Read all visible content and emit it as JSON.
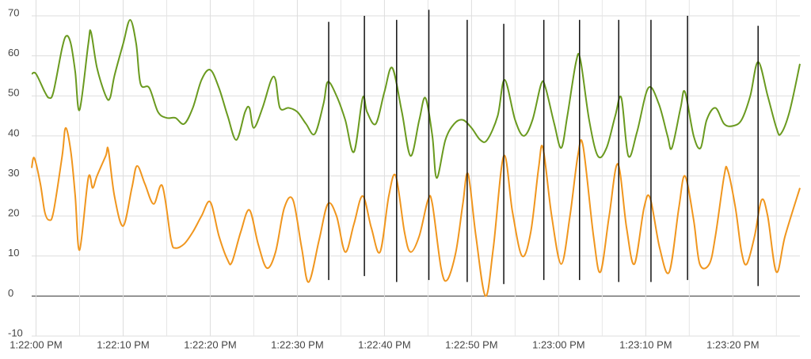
{
  "chart_data": {
    "type": "line",
    "xlim": [
      -0.5,
      87.7
    ],
    "ylim": [
      -10,
      70
    ],
    "yticks": [
      -10,
      0,
      10,
      20,
      30,
      40,
      50,
      60,
      70
    ],
    "xticks": [
      {
        "value": 0,
        "label": "1:22:00 PM"
      },
      {
        "value": 10,
        "label": "1:22:10 PM"
      },
      {
        "value": 20,
        "label": "1:22:20 PM"
      },
      {
        "value": 30,
        "label": "1:22:30 PM"
      },
      {
        "value": 40,
        "label": "1:22:40 PM"
      },
      {
        "value": 50,
        "label": "1:22:50 PM"
      },
      {
        "value": 60,
        "label": "1:23:00 PM"
      },
      {
        "value": 70,
        "label": "1:23:10 PM"
      },
      {
        "value": 80,
        "label": "1:23:20 PM"
      }
    ],
    "grid": true,
    "series": [
      {
        "color": "#6a9a1f",
        "x": [
          -0.5,
          0,
          1,
          1.5,
          2,
          3,
          3.5,
          4,
          4.5,
          5,
          6,
          6.3,
          7,
          8,
          8.5,
          9,
          10,
          10.8,
          11.5,
          12,
          13,
          14,
          15,
          16,
          17,
          18,
          19,
          20,
          21,
          22,
          23,
          24,
          24.5,
          25,
          26,
          27,
          27.5,
          28,
          29,
          30,
          31,
          32,
          33,
          33.5,
          34.5,
          35.5,
          36.5,
          37.5,
          38,
          39,
          40,
          40.9,
          42,
          43,
          44,
          44.7,
          45.5,
          46,
          47,
          48,
          49,
          50,
          51,
          51.8,
          53,
          53.8,
          55,
          56,
          57,
          58,
          58.5,
          59.5,
          60.3,
          61,
          62,
          62.5,
          63.5,
          64.5,
          65.5,
          66.5,
          67.2,
          68,
          69,
          70.3,
          71.5,
          72.5,
          73,
          74,
          74.5,
          75.5,
          76.3,
          77,
          78,
          79,
          80,
          81,
          82,
          82.9,
          84,
          85,
          85.5,
          86.5,
          87.7
        ],
        "values": [
          55.5,
          55.5,
          51,
          49.5,
          51,
          62,
          65,
          63,
          56,
          46.5,
          63,
          66,
          57,
          50,
          49.5,
          55,
          63,
          69,
          63,
          53,
          52,
          46,
          44.5,
          44.5,
          43,
          47,
          54,
          56.5,
          52,
          45,
          39,
          46,
          47,
          42,
          47,
          54,
          54,
          47,
          47,
          46,
          43,
          40.5,
          48,
          53.5,
          50,
          44,
          36,
          49.5,
          46,
          43,
          51,
          57,
          46,
          35,
          44,
          49.5,
          40,
          29.5,
          39,
          43,
          44,
          42,
          39,
          39,
          45,
          54,
          44,
          40,
          44,
          53,
          52,
          43,
          37,
          45,
          58.5,
          59,
          44,
          35,
          37,
          45,
          49.5,
          35,
          41,
          52,
          48,
          40,
          37,
          47,
          51,
          40,
          37,
          44,
          47,
          43,
          42.5,
          44,
          50,
          58.5,
          50,
          42,
          40.5,
          46,
          58
        ]
      },
      {
        "color": "#f0961e",
        "x": [
          -0.5,
          -0.2,
          0.5,
          1,
          1.5,
          2,
          3,
          3.4,
          4,
          4.5,
          5,
          6,
          6.5,
          7,
          8,
          8.3,
          9,
          10,
          11,
          11.6,
          12.5,
          13.5,
          14.5,
          15.5,
          16,
          17,
          18,
          19,
          20,
          21,
          22,
          22.5,
          23.5,
          24.5,
          25.5,
          26.5,
          27.5,
          28.5,
          29.5,
          30.5,
          31.3,
          32.5,
          33.5,
          34.5,
          35.5,
          36.5,
          37.5,
          38.5,
          39.5,
          40.5,
          41.3,
          42.3,
          43,
          44,
          45,
          45.5,
          46.5,
          47.2,
          48.2,
          49,
          49.6,
          50.5,
          51.6,
          52.5,
          53.7,
          54.7,
          55.8,
          56.8,
          57.7,
          58.2,
          59.2,
          60.3,
          61.3,
          62.2,
          62.8,
          64,
          64.8,
          65.8,
          66.8,
          67.8,
          68.7,
          69.8,
          70.5,
          71.6,
          72.7,
          73.8,
          74.5,
          75.5,
          76.2,
          77.3,
          78,
          79,
          79.4,
          80.3,
          81,
          81.6,
          82.5,
          83.3,
          84,
          85,
          86,
          87.7
        ],
        "values": [
          32,
          34.5,
          28,
          21,
          19,
          21,
          35,
          42,
          36,
          25,
          11.5,
          29.5,
          27,
          30,
          35,
          36.5,
          25,
          17.5,
          27,
          32.5,
          28,
          23,
          27.5,
          14,
          12,
          13,
          16,
          20,
          23.5,
          15,
          9,
          8.5,
          16,
          21.5,
          13,
          7,
          11,
          22,
          24,
          12,
          3.5,
          14,
          23,
          20,
          11,
          18,
          25,
          17,
          11,
          25,
          30,
          16,
          11,
          15,
          24,
          23,
          7,
          4,
          11,
          23,
          30.5,
          15,
          0,
          12,
          35,
          21,
          10,
          16,
          32,
          37,
          20,
          8,
          20,
          35,
          37.5,
          15,
          6,
          20,
          33,
          17,
          8,
          22,
          24.5,
          12,
          6,
          22,
          30,
          19,
          8,
          8,
          15,
          30,
          31.5,
          22,
          11,
          8,
          15,
          24,
          20,
          6,
          15,
          27
        ]
      }
    ],
    "vertical_lines": [
      {
        "x": 33.6,
        "from": 4,
        "to": 68.5
      },
      {
        "x": 37.7,
        "from": 5,
        "to": 70
      },
      {
        "x": 41.4,
        "from": 3.5,
        "to": 69
      },
      {
        "x": 45.1,
        "from": 4,
        "to": 71.5
      },
      {
        "x": 49.5,
        "from": 3.5,
        "to": 69
      },
      {
        "x": 53.7,
        "from": 3,
        "to": 68
      },
      {
        "x": 58.3,
        "from": 4,
        "to": 69
      },
      {
        "x": 62.4,
        "from": 4,
        "to": 69
      },
      {
        "x": 66.9,
        "from": 3.5,
        "to": 69
      },
      {
        "x": 70.6,
        "from": 3.5,
        "to": 69
      },
      {
        "x": 74.8,
        "from": 4,
        "to": 70
      },
      {
        "x": 82.9,
        "from": 2.5,
        "to": 67.5
      }
    ]
  }
}
